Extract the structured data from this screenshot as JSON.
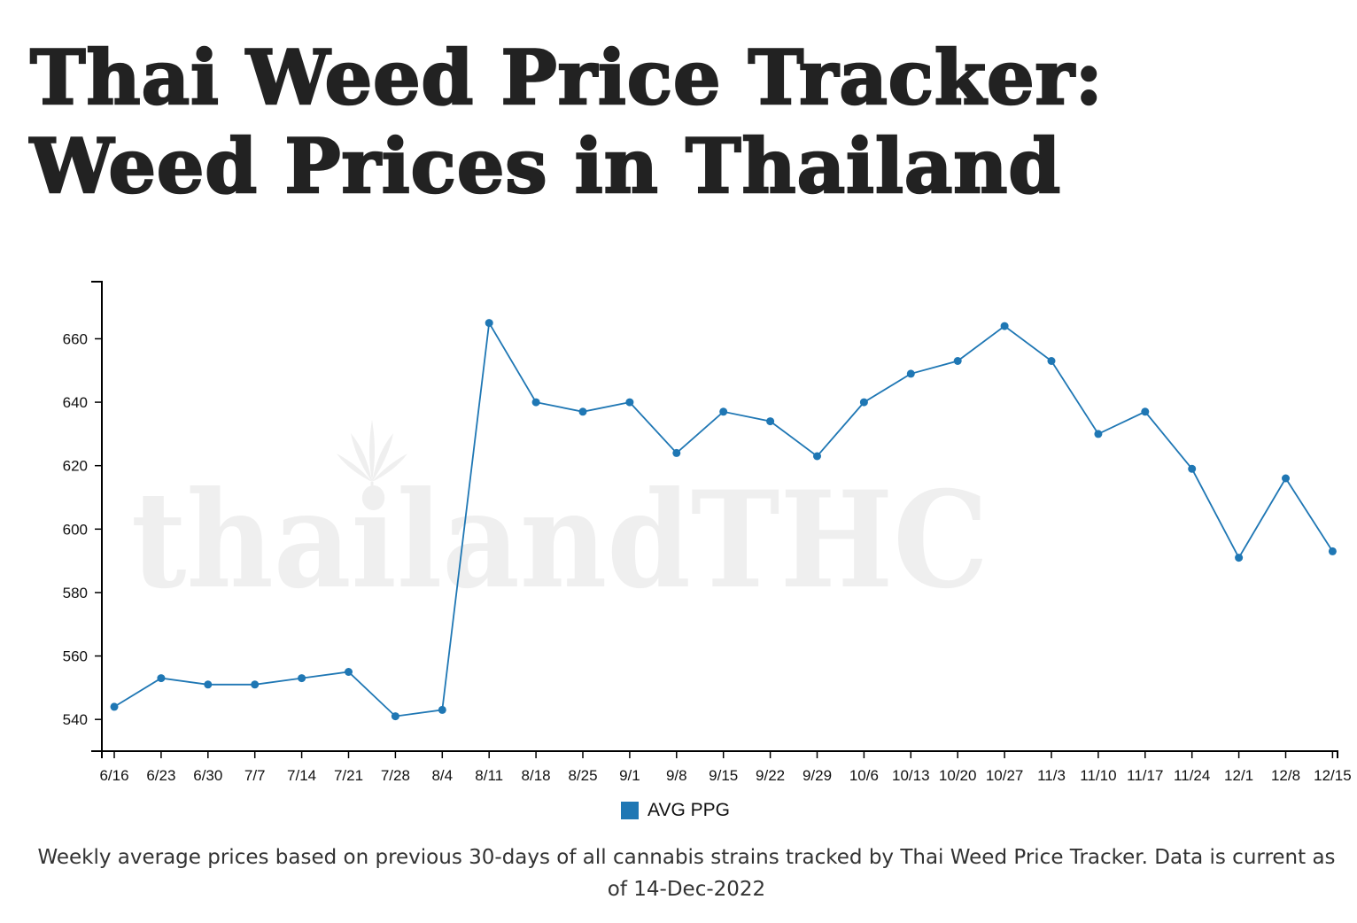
{
  "page": {
    "title": "Thai Weed Price Tracker: Weed Prices in Thailand",
    "caption": "Weekly average prices based on previous 30-days of all cannabis strains tracked by Thai Weed Price Tracker. Data is current as of 14-Dec-2022"
  },
  "watermark": {
    "text": "thailandTHC",
    "color": "#efefef"
  },
  "chart_data": {
    "type": "line",
    "title": "",
    "xlabel": "",
    "ylabel": "",
    "categories": [
      "6/16",
      "6/23",
      "6/30",
      "7/7",
      "7/14",
      "7/21",
      "7/28",
      "8/4",
      "8/11",
      "8/18",
      "8/25",
      "9/1",
      "9/8",
      "9/15",
      "9/22",
      "9/29",
      "10/6",
      "10/13",
      "10/20",
      "10/27",
      "11/3",
      "11/10",
      "11/17",
      "11/24",
      "12/1",
      "12/8",
      "12/15"
    ],
    "series": [
      {
        "name": "AVG PPG",
        "color": "#1f77b4",
        "values": [
          544,
          553,
          551,
          551,
          553,
          555,
          541,
          543,
          665,
          640,
          637,
          640,
          624,
          637,
          634,
          623,
          640,
          649,
          653,
          664,
          653,
          630,
          637,
          619,
          591,
          616,
          593
        ]
      }
    ],
    "ylim": [
      530,
      678
    ],
    "yticks": [
      540,
      560,
      580,
      600,
      620,
      640,
      660
    ],
    "legend_position": "bottom-center",
    "grid": false
  }
}
